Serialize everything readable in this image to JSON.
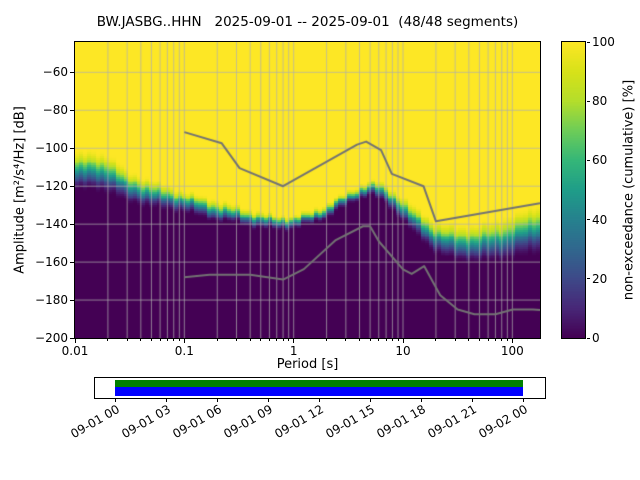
{
  "chart_data": {
    "type": "heatmap",
    "title": "BW.JASBG..HHN   2025-09-01 -- 2025-09-01  (48/48 segments)",
    "xlabel": "Period [s]",
    "ylabel": "Amplitude [m²/s⁴/Hz] [dB]",
    "xscale": "log",
    "xlim": [
      0.01,
      179
    ],
    "ylim": [
      -200,
      -44
    ],
    "xticks": [
      0.01,
      0.1,
      1,
      10,
      100
    ],
    "xtick_labels": [
      "0.01",
      "0.1",
      "1",
      "10",
      "100"
    ],
    "yticks": [
      -200,
      -180,
      -160,
      -140,
      -120,
      -100,
      -80,
      -60
    ],
    "grid": true,
    "grid_color": "#b0b0b0",
    "noise_model_color": "#737373",
    "background": "#ffffff",
    "colorbar": {
      "label": "non-exceedance (cumulative) [%]",
      "ticks": [
        0,
        20,
        40,
        60,
        80,
        100
      ],
      "colormap": "viridis",
      "stops": [
        {
          "t": 0.0,
          "color": "#440154"
        },
        {
          "t": 0.1,
          "color": "#482878"
        },
        {
          "t": 0.2,
          "color": "#3e4a89"
        },
        {
          "t": 0.3,
          "color": "#31688e"
        },
        {
          "t": 0.4,
          "color": "#26828e"
        },
        {
          "t": 0.5,
          "color": "#1f9e89"
        },
        {
          "t": 0.6,
          "color": "#35b779"
        },
        {
          "t": 0.7,
          "color": "#6dcd59"
        },
        {
          "t": 0.8,
          "color": "#b4de2c"
        },
        {
          "t": 0.9,
          "color": "#d8e219"
        },
        {
          "t": 1.0,
          "color": "#fde725"
        }
      ]
    },
    "distribution": {
      "periods_s": [
        0.01,
        0.015,
        0.02,
        0.03,
        0.05,
        0.07,
        0.1,
        0.15,
        0.2,
        0.3,
        0.5,
        0.7,
        1.0,
        1.5,
        2.0,
        3.0,
        4.0,
        5.0,
        6.0,
        8.0,
        10.0,
        14.0,
        20.0,
        30.0,
        50.0,
        80.0,
        120.0,
        179.0
      ],
      "median_db": [
        -112,
        -112,
        -113,
        -120,
        -124,
        -126,
        -128,
        -131,
        -133,
        -135,
        -138,
        -139,
        -139,
        -136,
        -133,
        -127,
        -123,
        -121,
        -122,
        -127,
        -132,
        -140,
        -147,
        -150,
        -150,
        -148,
        -145,
        -142
      ],
      "spread_db": [
        11,
        11,
        11,
        9,
        8,
        7,
        6,
        6,
        6,
        5,
        5,
        4,
        4,
        4,
        4,
        4,
        4,
        4,
        5,
        6,
        7,
        8,
        9,
        10,
        11,
        12,
        13,
        14
      ]
    },
    "noise_models": {
      "high": {
        "periods_s": [
          0.1,
          0.22,
          0.32,
          0.8,
          3.8,
          4.6,
          6.3,
          7.9,
          15.4,
          20.0,
          179.0
        ],
        "db": [
          -91.5,
          -97.4,
          -110.5,
          -120.0,
          -98.1,
          -96.5,
          -101.0,
          -113.5,
          -120.0,
          -138.5,
          -129.0
        ]
      },
      "low": {
        "periods_s": [
          0.1,
          0.17,
          0.4,
          0.8,
          1.24,
          2.4,
          4.3,
          5.0,
          6.0,
          10.0,
          12.0,
          15.6,
          21.9,
          31.6,
          45.0,
          70.0,
          101.0,
          154.0,
          179.0
        ],
        "db": [
          -168.0,
          -166.7,
          -166.7,
          -169.2,
          -163.7,
          -148.6,
          -141.1,
          -141.1,
          -149.0,
          -163.8,
          -166.2,
          -162.1,
          -177.5,
          -185.0,
          -187.5,
          -187.5,
          -185.0,
          -185.0,
          -185.3
        ]
      }
    }
  },
  "timeline": {
    "tick_labels": [
      "09-01 00",
      "09-01 03",
      "09-01 06",
      "09-01 09",
      "09-01 12",
      "09-01 15",
      "09-01 18",
      "09-01 21",
      "09-02 00"
    ],
    "coverage_top_color": "#008000",
    "coverage_bottom_color": "#0000ff"
  }
}
